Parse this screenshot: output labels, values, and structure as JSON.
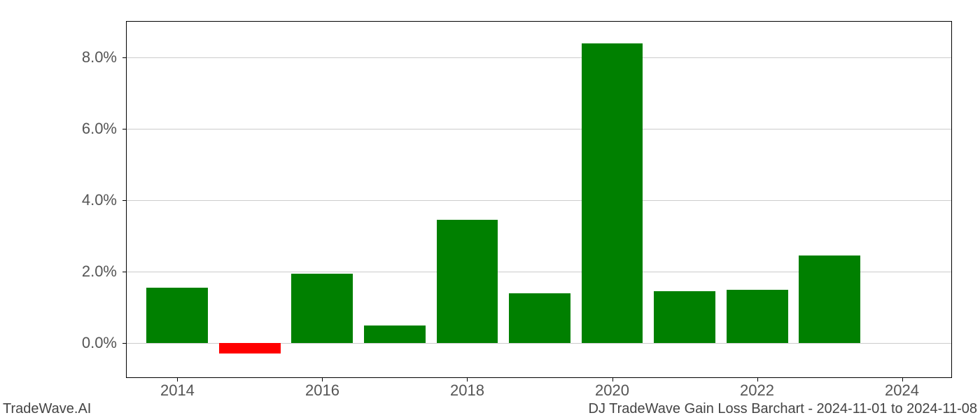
{
  "chart": {
    "type": "bar",
    "years": [
      2014,
      2015,
      2016,
      2017,
      2018,
      2019,
      2020,
      2021,
      2022,
      2023
    ],
    "values": [
      1.55,
      -0.3,
      1.95,
      0.5,
      3.45,
      1.4,
      8.4,
      1.45,
      1.5,
      2.45
    ],
    "positive_color": "#008000",
    "negative_color": "#ff0000",
    "background_color": "#ffffff",
    "grid_color": "#cccccc",
    "axis_color": "#000000",
    "y_min": -1.0,
    "y_max": 9.0,
    "y_ticks": [
      0.0,
      2.0,
      4.0,
      6.0,
      8.0
    ],
    "y_tick_labels": [
      "0.0%",
      "2.0%",
      "4.0%",
      "6.0%",
      "8.0%"
    ],
    "x_tick_years": [
      2014,
      2016,
      2018,
      2020,
      2022,
      2024
    ],
    "x_tick_labels": [
      "2014",
      "2016",
      "2018",
      "2020",
      "2022",
      "2024"
    ],
    "x_min": 2013.3,
    "x_max": 2024.7,
    "bar_width_years": 0.85,
    "tick_label_color": "#555555",
    "tick_label_fontsize": 22,
    "footer_fontsize": 20,
    "footer_color": "#444444"
  },
  "footer": {
    "left": "TradeWave.AI",
    "right": "DJ TradeWave Gain Loss Barchart - 2024-11-01 to 2024-11-08"
  }
}
